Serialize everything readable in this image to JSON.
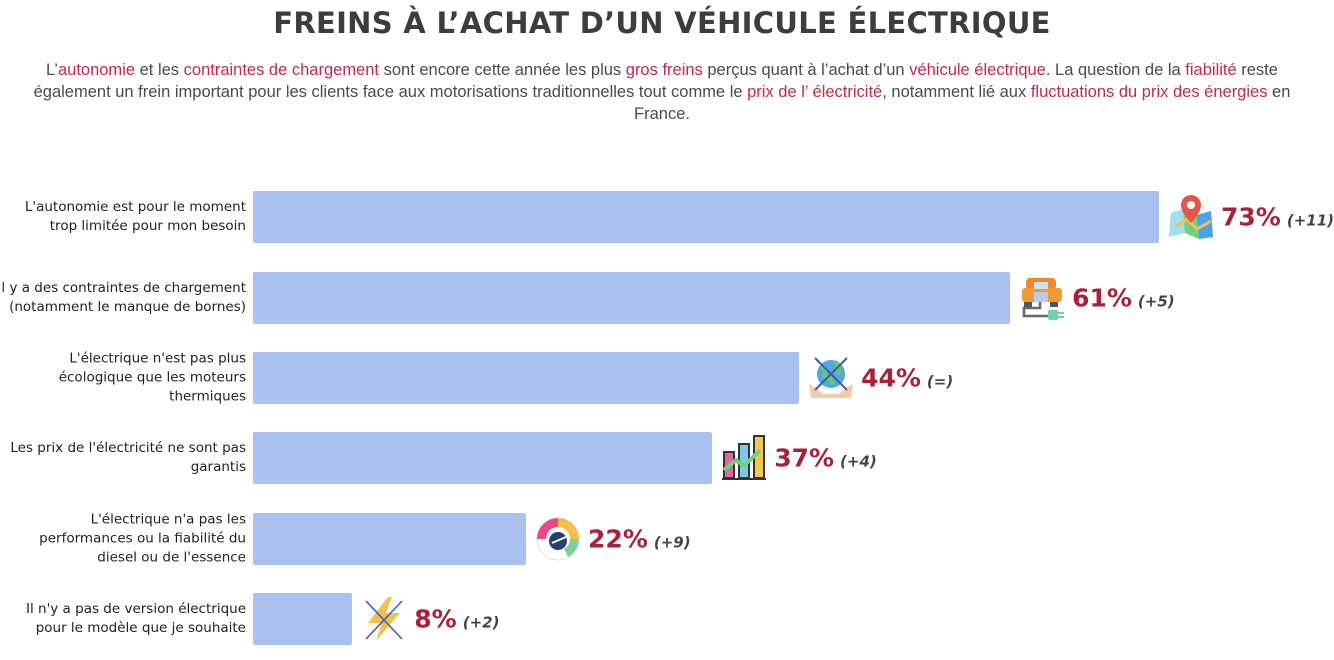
{
  "chart_data": {
    "type": "bar",
    "orientation": "horizontal",
    "title": "FREINS À L’ACHAT D’UN VÉHICULE ÉLECTRIQUE",
    "subtitle_segments": [
      {
        "t": "L’"
      },
      {
        "t": "autonomie",
        "hl": true
      },
      {
        "t": " et les "
      },
      {
        "t": "contraintes de chargement",
        "hl": true
      },
      {
        "t": " sont encore cette année les plus "
      },
      {
        "t": "gros freins",
        "hl": true
      },
      {
        "t": " perçus quant à l’achat d’un "
      },
      {
        "t": "véhicule électrique",
        "hl": true
      },
      {
        "t": ". La question de la "
      },
      {
        "t": "fiabilité",
        "hl": true
      },
      {
        "t": " reste également un frein important pour les clients face aux motorisations traditionnelles tout comme le "
      },
      {
        "t": "prix de l’ électricité",
        "hl": true
      },
      {
        "t": ", notamment lié aux "
      },
      {
        "t": "fluctuations du prix des énergies",
        "hl": true
      },
      {
        "t": " en France."
      }
    ],
    "categories": [
      "L'autonomie est pour le moment trop limitée pour mon besoin",
      "Il y a des contraintes de chargement (notamment le manque de bornes)",
      "L'électrique n'est pas plus écologique que les moteurs thermiques",
      "Les prix de l'électricité ne sont pas garantis",
      "L'électrique n'a pas les performances ou la fiabilité du diesel ou de l'essence",
      "Il n'y a pas de version électrique pour le modèle que je souhaite"
    ],
    "values": [
      73,
      61,
      44,
      37,
      22,
      8
    ],
    "value_labels": [
      "73%",
      "61%",
      "44%",
      "37%",
      "22%",
      "8%"
    ],
    "changes": [
      "(+11)",
      "(+5)",
      "(=)",
      "(+4)",
      "(+9)",
      "(+2)"
    ],
    "icons": [
      "map-pin-icon",
      "car-charging-icon",
      "crossed-earth-icon",
      "price-chart-icon",
      "speedometer-icon",
      "crossed-lightning-icon"
    ],
    "xlim": [
      0,
      73
    ],
    "grid": false,
    "colors": {
      "bar": "#a9c1ee",
      "value": "#a8213a",
      "highlight": "#c22a4b",
      "title": "#3d3d3d"
    }
  }
}
